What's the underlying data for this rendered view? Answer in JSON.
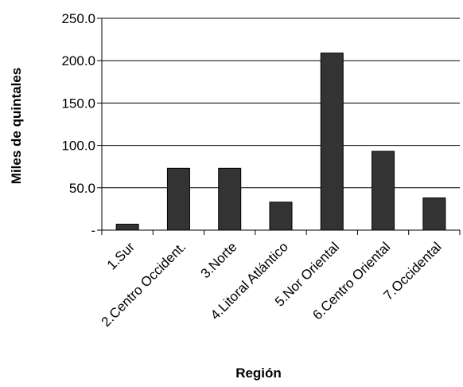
{
  "chart_data": {
    "type": "bar",
    "xlabel": "Región",
    "ylabel": "Miles de quintales",
    "ylim": [
      0,
      250
    ],
    "y_ticks": [
      {
        "value": 0,
        "label": "-"
      },
      {
        "value": 50,
        "label": "50.0"
      },
      {
        "value": 100,
        "label": "100.0"
      },
      {
        "value": 150,
        "label": "150.0"
      },
      {
        "value": 200,
        "label": "200.0"
      },
      {
        "value": 250,
        "label": "250.0"
      }
    ],
    "grid": true,
    "legend": "none",
    "categories": [
      "1.Sur",
      "2.Centro Occident.",
      "3.Norte",
      "4.Litoral Atlántico",
      "5.Nor Oriental",
      "6.Centro Oriental",
      "7.Occidental"
    ],
    "values": [
      7,
      73,
      73,
      33,
      209,
      93,
      38
    ],
    "bar_color": "#333333",
    "bar_edge_color": "#000000"
  }
}
